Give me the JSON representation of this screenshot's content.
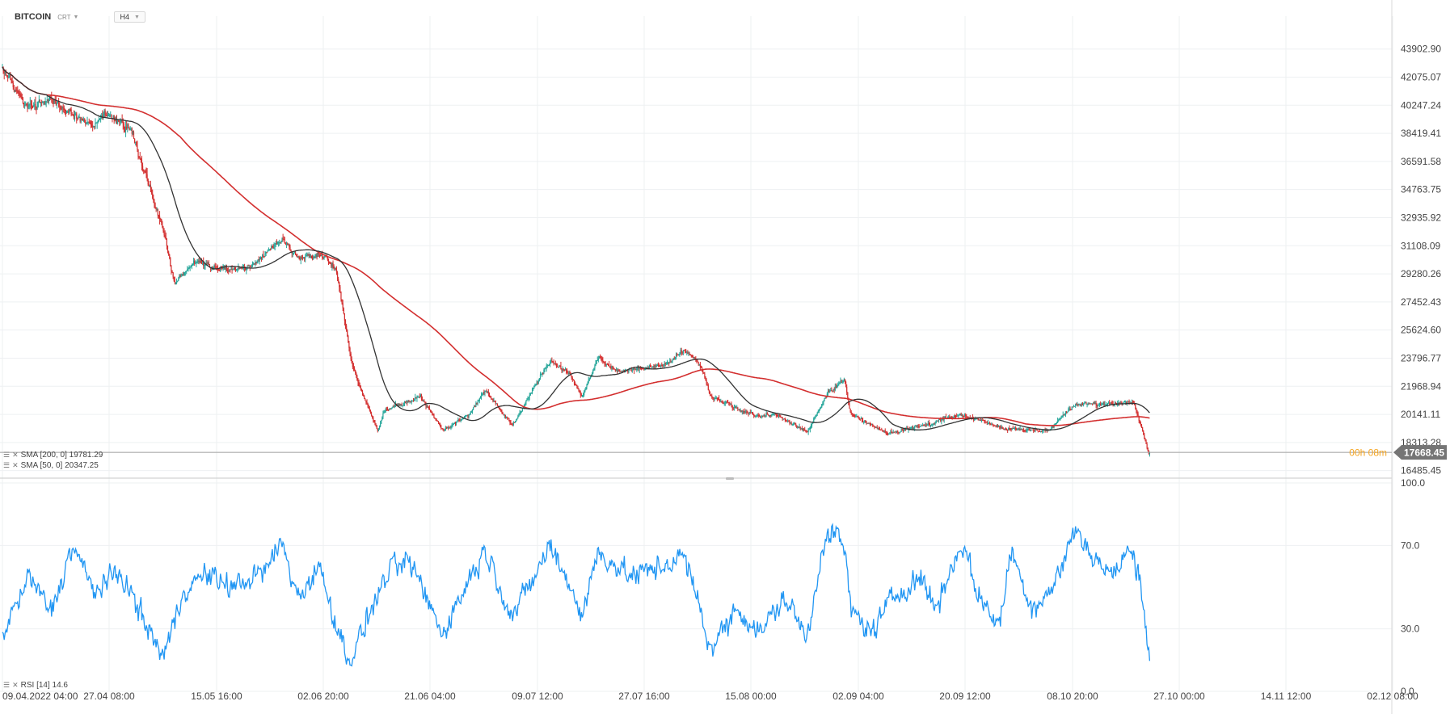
{
  "header": {
    "symbol": "BITCOIN",
    "source": "CRT",
    "timeframe": "H4"
  },
  "indicators": {
    "sma200": "SMA [200, 0] 19781.29",
    "sma50": "SMA [50, 0] 20347.25",
    "rsi": "RSI [14] 14.6"
  },
  "price_badge": {
    "value": "17668.45",
    "countdown": "00h 08m"
  },
  "colors": {
    "up": "#26a69a",
    "down": "#d32f2f",
    "sma200": "#d32f2f",
    "sma50": "#333333",
    "rsi": "#2196f3",
    "grid": "#eef0f2",
    "badge": "#757575"
  },
  "chart_data": [
    {
      "type": "candlestick",
      "timeframe": "H4",
      "y_ticks": [
        "43902.90",
        "42075.07",
        "40247.24",
        "38419.41",
        "36591.58",
        "34763.75",
        "32935.92",
        "31108.09",
        "29280.26",
        "27452.43",
        "25624.60",
        "23796.77",
        "21968.94",
        "20141.11",
        "18313.28",
        "16485.45"
      ],
      "ylim": [
        16100,
        45200
      ],
      "x_ticks": [
        "09.04.2022 04:00",
        "27.04 08:00",
        "15.05 16:00",
        "02.06 20:00",
        "21.06 04:00",
        "09.07 12:00",
        "27.07 16:00",
        "15.08 00:00",
        "02.09 04:00",
        "20.09 12:00",
        "08.10 20:00",
        "27.10 00:00",
        "14.11 12:00",
        "02.12 08:00"
      ],
      "price_anchors": [
        [
          "09.04.2022",
          42700
        ],
        [
          "13.04.2022",
          40200
        ],
        [
          "18.04.2022",
          40600
        ],
        [
          "22.04.2022",
          39600
        ],
        [
          "26.04.2022",
          38900
        ],
        [
          "28.04.2022",
          39700
        ],
        [
          "03.05.2022",
          38600
        ],
        [
          "05.05.2022",
          36200
        ],
        [
          "09.05.2022",
          32000
        ],
        [
          "11.05.2022",
          28500
        ],
        [
          "12.05.2022",
          29200
        ],
        [
          "15.05.2022",
          30100
        ],
        [
          "20.05.2022",
          29600
        ],
        [
          "25.05.2022",
          29700
        ],
        [
          "31.05.2022",
          31600
        ],
        [
          "03.06.2022",
          30300
        ],
        [
          "07.06.2022",
          30500
        ],
        [
          "10.06.2022",
          29800
        ],
        [
          "13.06.2022",
          23500
        ],
        [
          "15.06.2022",
          21500
        ],
        [
          "18.06.2022",
          18900
        ],
        [
          "19.06.2022",
          20400
        ],
        [
          "26.06.2022",
          21300
        ],
        [
          "30.06.2022",
          19100
        ],
        [
          "05.07.2022",
          20100
        ],
        [
          "08.07.2022",
          21700
        ],
        [
          "13.07.2022",
          19400
        ],
        [
          "20.07.2022",
          23700
        ],
        [
          "24.07.2022",
          22700
        ],
        [
          "26.07.2022",
          21300
        ],
        [
          "29.07.2022",
          23800
        ],
        [
          "02.08.2022",
          22900
        ],
        [
          "10.08.2022",
          23300
        ],
        [
          "14.08.2022",
          24300
        ],
        [
          "17.08.2022",
          23400
        ],
        [
          "19.08.2022",
          21300
        ],
        [
          "27.08.2022",
          20100
        ],
        [
          "31.08.2022",
          20100
        ],
        [
          "06.09.2022",
          19000
        ],
        [
          "10.09.2022",
          21600
        ],
        [
          "13.09.2022",
          22400
        ],
        [
          "14.09.2022",
          20200
        ],
        [
          "21.09.2022",
          18900
        ],
        [
          "29.09.2022",
          19500
        ],
        [
          "04.10.2022",
          20200
        ],
        [
          "13.10.2022",
          19200
        ],
        [
          "21.10.2022",
          19100
        ],
        [
          "26.10.2022",
          20800
        ],
        [
          "06.11.2022",
          20900
        ],
        [
          "09.11.2022",
          17200
        ]
      ],
      "last_price": 17668.45,
      "series": [
        {
          "name": "SMA [200, 0]",
          "last": 19781.29
        },
        {
          "name": "SMA [50, 0]",
          "last": 20347.25
        }
      ]
    },
    {
      "type": "line",
      "y_ticks": [
        "100.0",
        "70.0",
        "30.0",
        "0.0"
      ],
      "ylim": [
        0,
        100
      ],
      "rsi_anchors": [
        [
          "09.04.2022",
          28
        ],
        [
          "14.04.2022",
          55
        ],
        [
          "18.04.2022",
          38
        ],
        [
          "22.04.2022",
          70
        ],
        [
          "26.04.2022",
          48
        ],
        [
          "01.05.2022",
          57
        ],
        [
          "06.05.2022",
          30
        ],
        [
          "09.05.2022",
          17
        ],
        [
          "13.05.2022",
          50
        ],
        [
          "17.05.2022",
          56
        ],
        [
          "22.05.2022",
          50
        ],
        [
          "28.05.2022",
          58
        ],
        [
          "31.05.2022",
          72
        ],
        [
          "03.06.2022",
          45
        ],
        [
          "07.06.2022",
          60
        ],
        [
          "11.06.2022",
          25
        ],
        [
          "13.06.2022",
          15
        ],
        [
          "16.06.2022",
          35
        ],
        [
          "20.06.2022",
          58
        ],
        [
          "24.06.2022",
          62
        ],
        [
          "30.06.2022",
          28
        ],
        [
          "05.07.2022",
          54
        ],
        [
          "08.07.2022",
          68
        ],
        [
          "13.07.2022",
          36
        ],
        [
          "17.07.2022",
          54
        ],
        [
          "20.07.2022",
          70
        ],
        [
          "24.07.2022",
          50
        ],
        [
          "26.07.2022",
          36
        ],
        [
          "29.07.2022",
          67
        ],
        [
          "04.08.2022",
          55
        ],
        [
          "10.08.2022",
          60
        ],
        [
          "14.08.2022",
          65
        ],
        [
          "17.08.2022",
          40
        ],
        [
          "19.08.2022",
          20
        ],
        [
          "24.08.2022",
          40
        ],
        [
          "28.08.2022",
          28
        ],
        [
          "02.09.2022",
          45
        ],
        [
          "06.09.2022",
          25
        ],
        [
          "09.09.2022",
          72
        ],
        [
          "11.09.2022",
          76
        ],
        [
          "13.09.2022",
          70
        ],
        [
          "14.09.2022",
          40
        ],
        [
          "18.09.2022",
          28
        ],
        [
          "22.09.2022",
          45
        ],
        [
          "27.09.2022",
          55
        ],
        [
          "30.09.2022",
          40
        ],
        [
          "05.10.2022",
          72
        ],
        [
          "08.10.2022",
          45
        ],
        [
          "12.10.2022",
          32
        ],
        [
          "14.10.2022",
          68
        ],
        [
          "18.10.2022",
          40
        ],
        [
          "22.10.2022",
          50
        ],
        [
          "26.10.2022",
          78
        ],
        [
          "29.10.2022",
          66
        ],
        [
          "02.11.2022",
          55
        ],
        [
          "05.11.2022",
          68
        ],
        [
          "07.11.2022",
          58
        ],
        [
          "09.11.2022",
          14.6
        ]
      ],
      "series": [
        {
          "name": "RSI [14]",
          "last": 14.6
        }
      ]
    }
  ]
}
